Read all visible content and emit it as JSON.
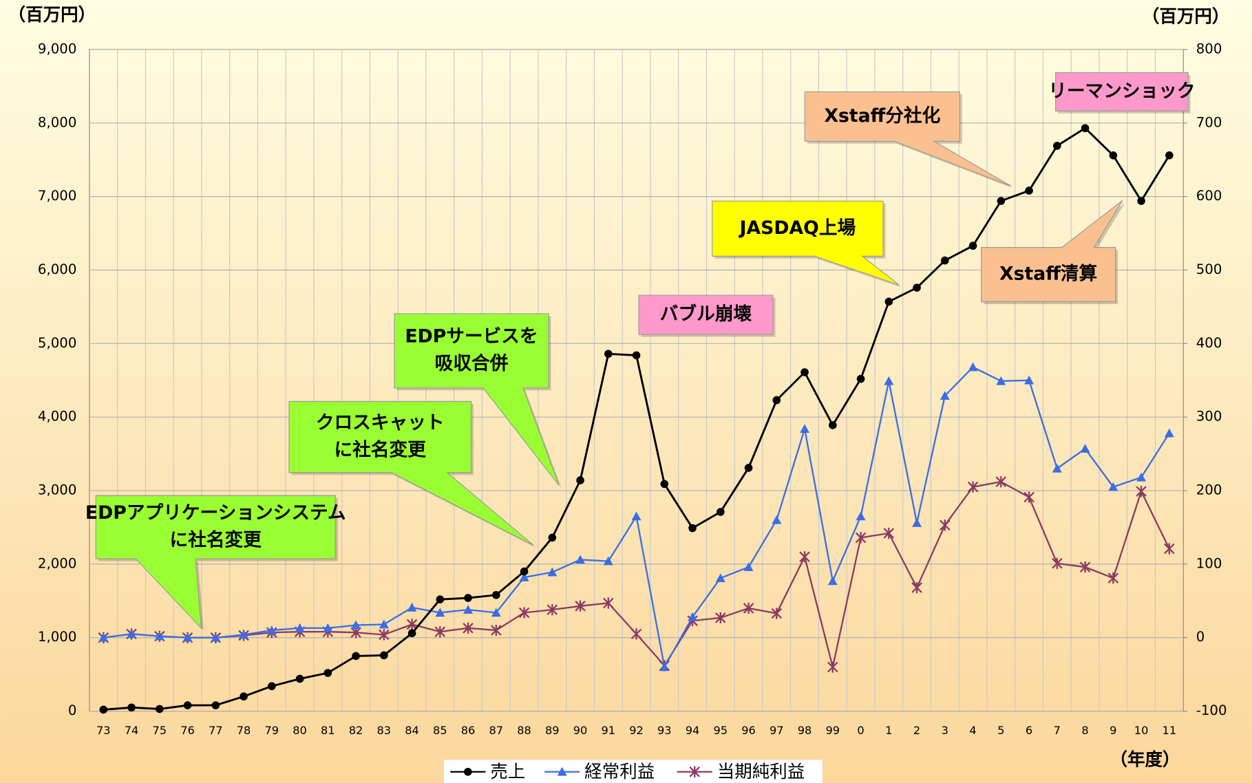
{
  "chart_data": {
    "type": "line",
    "categories": [
      "73",
      "74",
      "75",
      "76",
      "77",
      "78",
      "79",
      "80",
      "81",
      "82",
      "83",
      "84",
      "85",
      "86",
      "87",
      "88",
      "89",
      "90",
      "91",
      "92",
      "93",
      "94",
      "95",
      "96",
      "97",
      "98",
      "99",
      "0",
      "1",
      "2",
      "3",
      "4",
      "5",
      "6",
      "7",
      "8",
      "9",
      "10",
      "11"
    ],
    "series": [
      {
        "name": "売上",
        "color": "#000000",
        "marker": "circle",
        "axis": "y",
        "values": [
          20,
          50,
          30,
          80,
          80,
          200,
          340,
          440,
          520,
          750,
          760,
          1060,
          1520,
          1540,
          1580,
          1900,
          2360,
          3140,
          4860,
          4840,
          3090,
          2490,
          2710,
          3310,
          4230,
          4610,
          3890,
          4520,
          5570,
          5760,
          6130,
          6330,
          6940,
          7080,
          7690,
          7930,
          7560,
          6940,
          7560
        ]
      },
      {
        "name": "経常利益",
        "color": "#3a6ee8",
        "marker": "triangle",
        "axis": "y2",
        "values": [
          0,
          5,
          2,
          0,
          0,
          4,
          10,
          13,
          13,
          17,
          18,
          41,
          34,
          38,
          34,
          82,
          89,
          106,
          104,
          165,
          -40,
          28,
          81,
          96,
          160,
          284,
          77,
          165,
          349,
          156,
          329,
          368,
          349,
          350,
          230,
          257,
          205,
          218,
          278
        ]
      },
      {
        "name": "当期純利益",
        "color": "#8b3a62",
        "marker": "asterisk",
        "axis": "y2",
        "values": [
          0,
          5,
          2,
          0,
          0,
          3,
          7,
          8,
          8,
          7,
          4,
          18,
          8,
          13,
          10,
          34,
          38,
          43,
          47,
          5,
          -38,
          23,
          27,
          40,
          33,
          110,
          -40,
          136,
          142,
          68,
          153,
          205,
          212,
          191,
          101,
          96,
          81,
          199,
          121
        ]
      }
    ],
    "ylim": [
      0,
      9000
    ],
    "yticks": [
      0,
      {
        "value": 1000,
        "label": "1,000"
      },
      {
        "value": 2000,
        "label": "2,000"
      },
      {
        "value": 3000,
        "label": "3,000"
      },
      {
        "value": 4000,
        "label": "4,000"
      },
      {
        "value": 5000,
        "label": "5,000"
      },
      {
        "value": 6000,
        "label": "6,000"
      },
      {
        "value": 7000,
        "label": "7,000"
      },
      {
        "value": 8000,
        "label": "8,000"
      },
      {
        "value": 9000,
        "label": "9,000"
      }
    ],
    "y2lim": [
      -100,
      800
    ],
    "y2ticks": [
      -100,
      0,
      100,
      200,
      300,
      400,
      500,
      600,
      700,
      800
    ],
    "y_label": "（百万円）",
    "y2_label": "（百万円）",
    "x_label": "（年度）",
    "grid": true,
    "legend": "bottom",
    "annotations": [
      {
        "lines": [
          "EDPアプリケーションシステム",
          "に社名変更"
        ],
        "color": "#99ff33"
      },
      {
        "lines": [
          "クロスキャット",
          "に社名変更"
        ],
        "color": "#99ff33"
      },
      {
        "lines": [
          "EDPサービスを",
          "吸収合併"
        ],
        "color": "#99ff33"
      },
      {
        "lines": [
          "バブル崩壊"
        ],
        "color": "#ff99cc"
      },
      {
        "lines": [
          "JASDAQ上場"
        ],
        "color": "#ffff00"
      },
      {
        "lines": [
          "Xstaff分社化"
        ],
        "color": "#fac090"
      },
      {
        "lines": [
          "Xstaff清算"
        ],
        "color": "#fac090"
      },
      {
        "lines": [
          "リーマンショック"
        ],
        "color": "#ff99cc"
      }
    ]
  }
}
